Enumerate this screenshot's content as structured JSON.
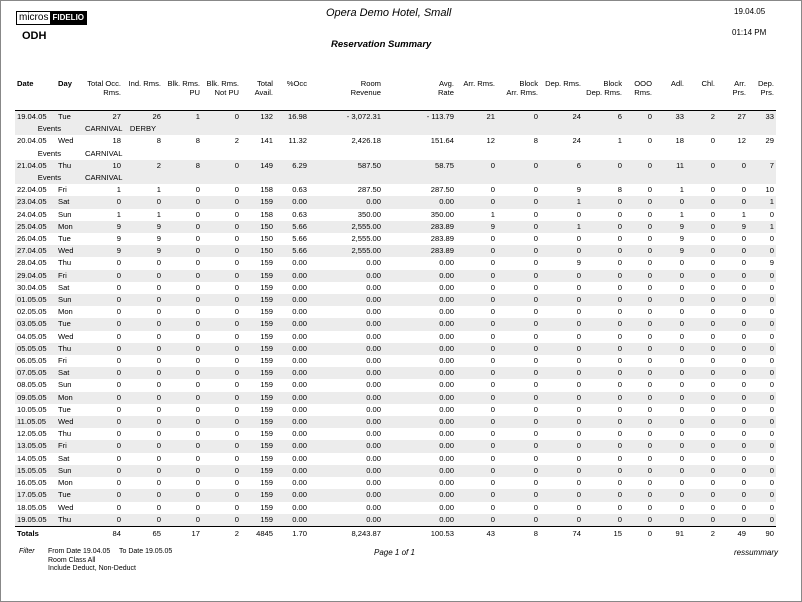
{
  "header": {
    "logo": {
      "left": "micros",
      "right": "FIDELIO"
    },
    "hotel": "Opera Demo Hotel, Small",
    "date": "19.04.05",
    "time": "01:14 PM",
    "property": "ODH",
    "title": "Reservation Summary"
  },
  "table": {
    "columns": [
      "Date",
      "Day",
      "Total Occ.\nRms.",
      "Ind. Rms.",
      "Blk. Rms.\nPU",
      "Blk. Rms.\nNot PU",
      "Total\nAvail.",
      "%Occ",
      "Room\nRevenue",
      "Avg.\nRate",
      "Arr. Rms.",
      "Block\nArr. Rms.",
      "Dep. Rms.",
      "Block\nDep. Rms.",
      "OOO\nRms.",
      "Adl.",
      "Chl.",
      "Arr.\nPrs.",
      "Dep.\nPrs."
    ],
    "rows": [
      {
        "cells": [
          "19.04.05",
          "Tue",
          "27",
          "26",
          "1",
          "0",
          "132",
          "16.98",
          "- 3,072.31",
          "- 113.79",
          "21",
          "0",
          "24",
          "6",
          "0",
          "33",
          "2",
          "27",
          "33"
        ],
        "events": {
          "label": "Events",
          "items": [
            "CARNIVAL",
            "DERBY"
          ]
        }
      },
      {
        "cells": [
          "20.04.05",
          "Wed",
          "18",
          "8",
          "8",
          "2",
          "141",
          "11.32",
          "2,426.18",
          "151.64",
          "12",
          "8",
          "24",
          "1",
          "0",
          "18",
          "0",
          "12",
          "29"
        ],
        "events": {
          "label": "Events",
          "items": [
            "CARNIVAL"
          ]
        }
      },
      {
        "cells": [
          "21.04.05",
          "Thu",
          "10",
          "2",
          "8",
          "0",
          "149",
          "6.29",
          "587.50",
          "58.75",
          "0",
          "0",
          "6",
          "0",
          "0",
          "11",
          "0",
          "0",
          "7"
        ],
        "events": {
          "label": "Events",
          "items": [
            "CARNIVAL"
          ]
        }
      },
      {
        "cells": [
          "22.04.05",
          "Fri",
          "1",
          "1",
          "0",
          "0",
          "158",
          "0.63",
          "287.50",
          "287.50",
          "0",
          "0",
          "9",
          "8",
          "0",
          "1",
          "0",
          "0",
          "10"
        ]
      },
      {
        "cells": [
          "23.04.05",
          "Sat",
          "0",
          "0",
          "0",
          "0",
          "159",
          "0.00",
          "0.00",
          "0.00",
          "0",
          "0",
          "1",
          "0",
          "0",
          "0",
          "0",
          "0",
          "1"
        ]
      },
      {
        "cells": [
          "24.04.05",
          "Sun",
          "1",
          "1",
          "0",
          "0",
          "158",
          "0.63",
          "350.00",
          "350.00",
          "1",
          "0",
          "0",
          "0",
          "0",
          "1",
          "0",
          "1",
          "0"
        ]
      },
      {
        "cells": [
          "25.04.05",
          "Mon",
          "9",
          "9",
          "0",
          "0",
          "150",
          "5.66",
          "2,555.00",
          "283.89",
          "9",
          "0",
          "1",
          "0",
          "0",
          "9",
          "0",
          "9",
          "1"
        ]
      },
      {
        "cells": [
          "26.04.05",
          "Tue",
          "9",
          "9",
          "0",
          "0",
          "150",
          "5.66",
          "2,555.00",
          "283.89",
          "0",
          "0",
          "0",
          "0",
          "0",
          "9",
          "0",
          "0",
          "0"
        ]
      },
      {
        "cells": [
          "27.04.05",
          "Wed",
          "9",
          "9",
          "0",
          "0",
          "150",
          "5.66",
          "2,555.00",
          "283.89",
          "0",
          "0",
          "0",
          "0",
          "0",
          "9",
          "0",
          "0",
          "0"
        ]
      },
      {
        "cells": [
          "28.04.05",
          "Thu",
          "0",
          "0",
          "0",
          "0",
          "159",
          "0.00",
          "0.00",
          "0.00",
          "0",
          "0",
          "9",
          "0",
          "0",
          "0",
          "0",
          "0",
          "9"
        ]
      },
      {
        "cells": [
          "29.04.05",
          "Fri",
          "0",
          "0",
          "0",
          "0",
          "159",
          "0.00",
          "0.00",
          "0.00",
          "0",
          "0",
          "0",
          "0",
          "0",
          "0",
          "0",
          "0",
          "0"
        ]
      },
      {
        "cells": [
          "30.04.05",
          "Sat",
          "0",
          "0",
          "0",
          "0",
          "159",
          "0.00",
          "0.00",
          "0.00",
          "0",
          "0",
          "0",
          "0",
          "0",
          "0",
          "0",
          "0",
          "0"
        ]
      },
      {
        "cells": [
          "01.05.05",
          "Sun",
          "0",
          "0",
          "0",
          "0",
          "159",
          "0.00",
          "0.00",
          "0.00",
          "0",
          "0",
          "0",
          "0",
          "0",
          "0",
          "0",
          "0",
          "0"
        ]
      },
      {
        "cells": [
          "02.05.05",
          "Mon",
          "0",
          "0",
          "0",
          "0",
          "159",
          "0.00",
          "0.00",
          "0.00",
          "0",
          "0",
          "0",
          "0",
          "0",
          "0",
          "0",
          "0",
          "0"
        ]
      },
      {
        "cells": [
          "03.05.05",
          "Tue",
          "0",
          "0",
          "0",
          "0",
          "159",
          "0.00",
          "0.00",
          "0.00",
          "0",
          "0",
          "0",
          "0",
          "0",
          "0",
          "0",
          "0",
          "0"
        ]
      },
      {
        "cells": [
          "04.05.05",
          "Wed",
          "0",
          "0",
          "0",
          "0",
          "159",
          "0.00",
          "0.00",
          "0.00",
          "0",
          "0",
          "0",
          "0",
          "0",
          "0",
          "0",
          "0",
          "0"
        ]
      },
      {
        "cells": [
          "05.05.05",
          "Thu",
          "0",
          "0",
          "0",
          "0",
          "159",
          "0.00",
          "0.00",
          "0.00",
          "0",
          "0",
          "0",
          "0",
          "0",
          "0",
          "0",
          "0",
          "0"
        ]
      },
      {
        "cells": [
          "06.05.05",
          "Fri",
          "0",
          "0",
          "0",
          "0",
          "159",
          "0.00",
          "0.00",
          "0.00",
          "0",
          "0",
          "0",
          "0",
          "0",
          "0",
          "0",
          "0",
          "0"
        ]
      },
      {
        "cells": [
          "07.05.05",
          "Sat",
          "0",
          "0",
          "0",
          "0",
          "159",
          "0.00",
          "0.00",
          "0.00",
          "0",
          "0",
          "0",
          "0",
          "0",
          "0",
          "0",
          "0",
          "0"
        ]
      },
      {
        "cells": [
          "08.05.05",
          "Sun",
          "0",
          "0",
          "0",
          "0",
          "159",
          "0.00",
          "0.00",
          "0.00",
          "0",
          "0",
          "0",
          "0",
          "0",
          "0",
          "0",
          "0",
          "0"
        ]
      },
      {
        "cells": [
          "09.05.05",
          "Mon",
          "0",
          "0",
          "0",
          "0",
          "159",
          "0.00",
          "0.00",
          "0.00",
          "0",
          "0",
          "0",
          "0",
          "0",
          "0",
          "0",
          "0",
          "0"
        ]
      },
      {
        "cells": [
          "10.05.05",
          "Tue",
          "0",
          "0",
          "0",
          "0",
          "159",
          "0.00",
          "0.00",
          "0.00",
          "0",
          "0",
          "0",
          "0",
          "0",
          "0",
          "0",
          "0",
          "0"
        ]
      },
      {
        "cells": [
          "11.05.05",
          "Wed",
          "0",
          "0",
          "0",
          "0",
          "159",
          "0.00",
          "0.00",
          "0.00",
          "0",
          "0",
          "0",
          "0",
          "0",
          "0",
          "0",
          "0",
          "0"
        ]
      },
      {
        "cells": [
          "12.05.05",
          "Thu",
          "0",
          "0",
          "0",
          "0",
          "159",
          "0.00",
          "0.00",
          "0.00",
          "0",
          "0",
          "0",
          "0",
          "0",
          "0",
          "0",
          "0",
          "0"
        ]
      },
      {
        "cells": [
          "13.05.05",
          "Fri",
          "0",
          "0",
          "0",
          "0",
          "159",
          "0.00",
          "0.00",
          "0.00",
          "0",
          "0",
          "0",
          "0",
          "0",
          "0",
          "0",
          "0",
          "0"
        ]
      },
      {
        "cells": [
          "14.05.05",
          "Sat",
          "0",
          "0",
          "0",
          "0",
          "159",
          "0.00",
          "0.00",
          "0.00",
          "0",
          "0",
          "0",
          "0",
          "0",
          "0",
          "0",
          "0",
          "0"
        ]
      },
      {
        "cells": [
          "15.05.05",
          "Sun",
          "0",
          "0",
          "0",
          "0",
          "159",
          "0.00",
          "0.00",
          "0.00",
          "0",
          "0",
          "0",
          "0",
          "0",
          "0",
          "0",
          "0",
          "0"
        ]
      },
      {
        "cells": [
          "16.05.05",
          "Mon",
          "0",
          "0",
          "0",
          "0",
          "159",
          "0.00",
          "0.00",
          "0.00",
          "0",
          "0",
          "0",
          "0",
          "0",
          "0",
          "0",
          "0",
          "0"
        ]
      },
      {
        "cells": [
          "17.05.05",
          "Tue",
          "0",
          "0",
          "0",
          "0",
          "159",
          "0.00",
          "0.00",
          "0.00",
          "0",
          "0",
          "0",
          "0",
          "0",
          "0",
          "0",
          "0",
          "0"
        ]
      },
      {
        "cells": [
          "18.05.05",
          "Wed",
          "0",
          "0",
          "0",
          "0",
          "159",
          "0.00",
          "0.00",
          "0.00",
          "0",
          "0",
          "0",
          "0",
          "0",
          "0",
          "0",
          "0",
          "0"
        ]
      },
      {
        "cells": [
          "19.05.05",
          "Thu",
          "0",
          "0",
          "0",
          "0",
          "159",
          "0.00",
          "0.00",
          "0.00",
          "0",
          "0",
          "0",
          "0",
          "0",
          "0",
          "0",
          "0",
          "0"
        ]
      }
    ],
    "totals": {
      "label": "Totals",
      "cells": [
        "84",
        "65",
        "17",
        "2",
        "4845",
        "1.70",
        "8,243.87",
        "100.53",
        "43",
        "8",
        "74",
        "15",
        "0",
        "91",
        "2",
        "49",
        "90"
      ]
    }
  },
  "footer": {
    "filter_label": "Filter",
    "from": "From Date 19.04.05",
    "to": "To Date 19.05.05",
    "room_class": "Room Class All",
    "include": "Include Deduct, Non-Deduct",
    "page": "Page 1 of 1",
    "report": "ressummary"
  }
}
